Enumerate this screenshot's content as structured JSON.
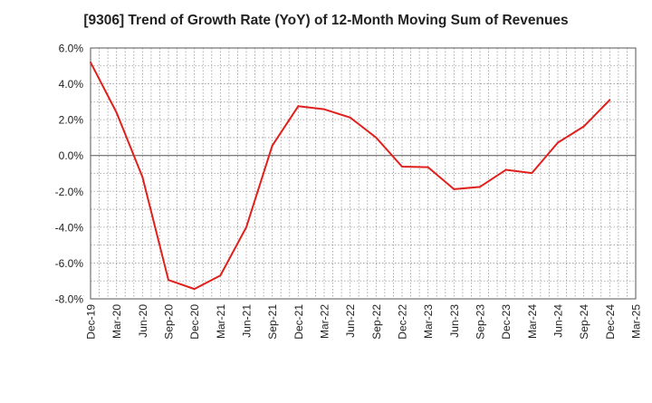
{
  "chart_data": {
    "type": "line",
    "title": "[9306]  Trend of Growth Rate (YoY) of 12-Month Moving Sum of Revenues",
    "xlabel": "",
    "ylabel": "",
    "x_ticks": [
      "Dec-19",
      "Mar-20",
      "Jun-20",
      "Sep-20",
      "Dec-20",
      "Mar-21",
      "Jun-21",
      "Sep-21",
      "Dec-21",
      "Mar-22",
      "Jun-22",
      "Sep-22",
      "Dec-22",
      "Mar-23",
      "Jun-23",
      "Sep-23",
      "Dec-23",
      "Mar-24",
      "Jun-24",
      "Sep-24",
      "Dec-24",
      "Mar-25"
    ],
    "y_ticks": [
      "6.0%",
      "4.0%",
      "2.0%",
      "0.0%",
      "-2.0%",
      "-4.0%",
      "-6.0%",
      "-8.0%"
    ],
    "ylim": [
      -8,
      6
    ],
    "grid": true,
    "series": [
      {
        "color": "#e0201c",
        "values": [
          5.2,
          2.4,
          -1.2,
          -6.95,
          -7.45,
          -6.7,
          -4.0,
          0.55,
          2.75,
          2.58,
          2.12,
          1.0,
          -0.62,
          -0.65,
          -1.88,
          -1.75,
          -0.8,
          -0.98,
          0.72,
          1.62,
          3.1
        ]
      }
    ]
  }
}
